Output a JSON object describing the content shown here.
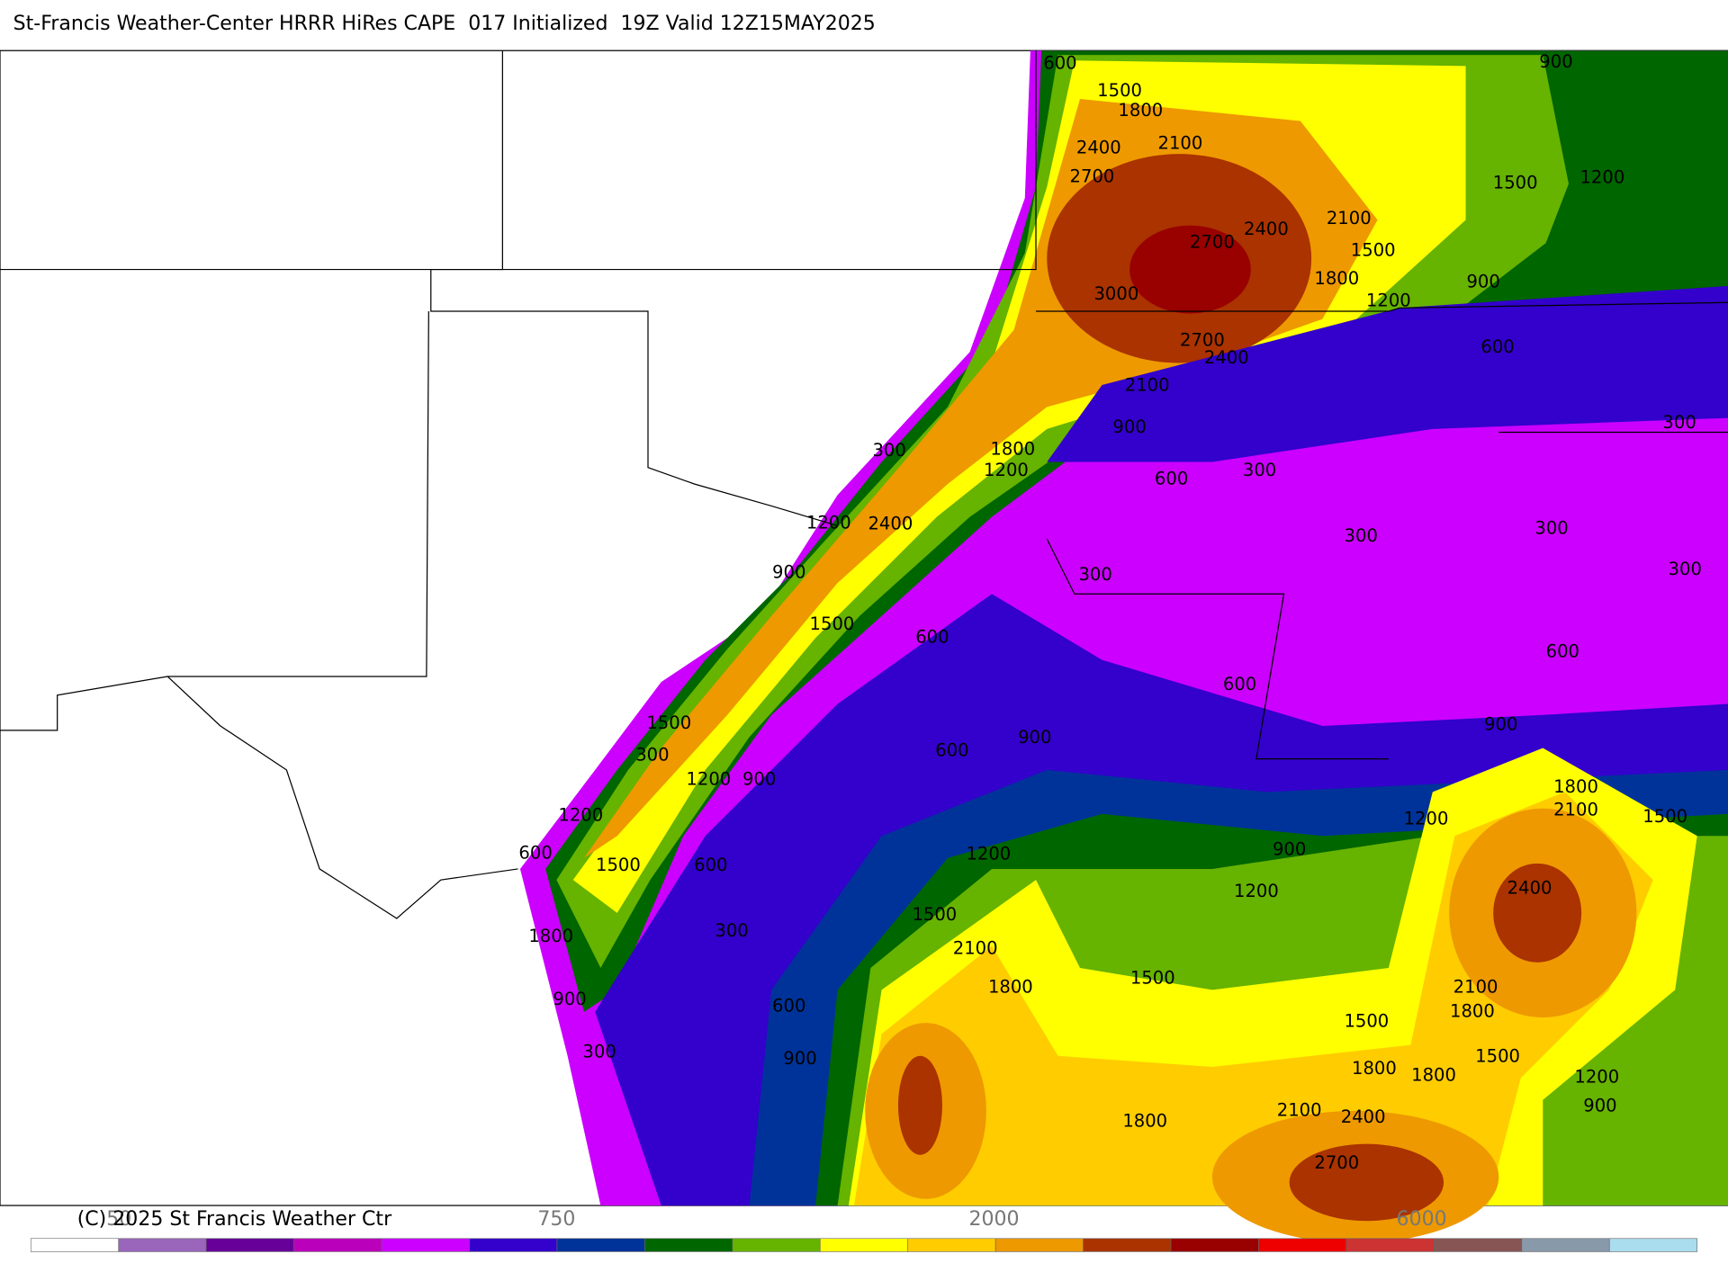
{
  "header": {
    "title": "St-Francis Weather-Center HRRR HiRes CAPE  017 Initialized  19Z Valid 12Z15MAY2025"
  },
  "contour_labels": [
    600,
    900,
    1500,
    1800,
    2100,
    2400,
    2700,
    1500,
    1200,
    2400,
    2100,
    2700,
    1500,
    1800,
    3000,
    900,
    1200,
    2700,
    2400,
    600,
    2100,
    300,
    900,
    300,
    1800,
    1200,
    300,
    600,
    1200,
    2400,
    300,
    300,
    900,
    300,
    300,
    1500,
    600,
    600,
    600,
    1500,
    900,
    900,
    600,
    300,
    1200,
    900,
    1800,
    2100,
    1500,
    1200,
    1200,
    600,
    1200,
    900,
    1500,
    600,
    1200,
    2400,
    1500,
    300,
    1800,
    2100,
    1500,
    1800,
    2100,
    1800,
    900,
    600,
    1500,
    1500,
    300,
    900,
    1800,
    1800,
    1200,
    900,
    2100,
    2400,
    1800,
    2700
  ],
  "colorbar": {
    "colors": [
      "#ffffff",
      "#9966bb",
      "#660099",
      "#bb00bb",
      "#cc00ff",
      "#3300cc",
      "#003399",
      "#006600",
      "#66b300",
      "#ffff00",
      "#ffcc00",
      "#ee9900",
      "#aa3300",
      "#990000",
      "#ee0000",
      "#cc3333",
      "#885555",
      "#8899aa",
      "#aaddee"
    ],
    "labels": [
      50,
      750,
      2000,
      6000
    ]
  },
  "footer": {
    "copyright": "(C) 2025 St Francis Weather Ctr"
  }
}
